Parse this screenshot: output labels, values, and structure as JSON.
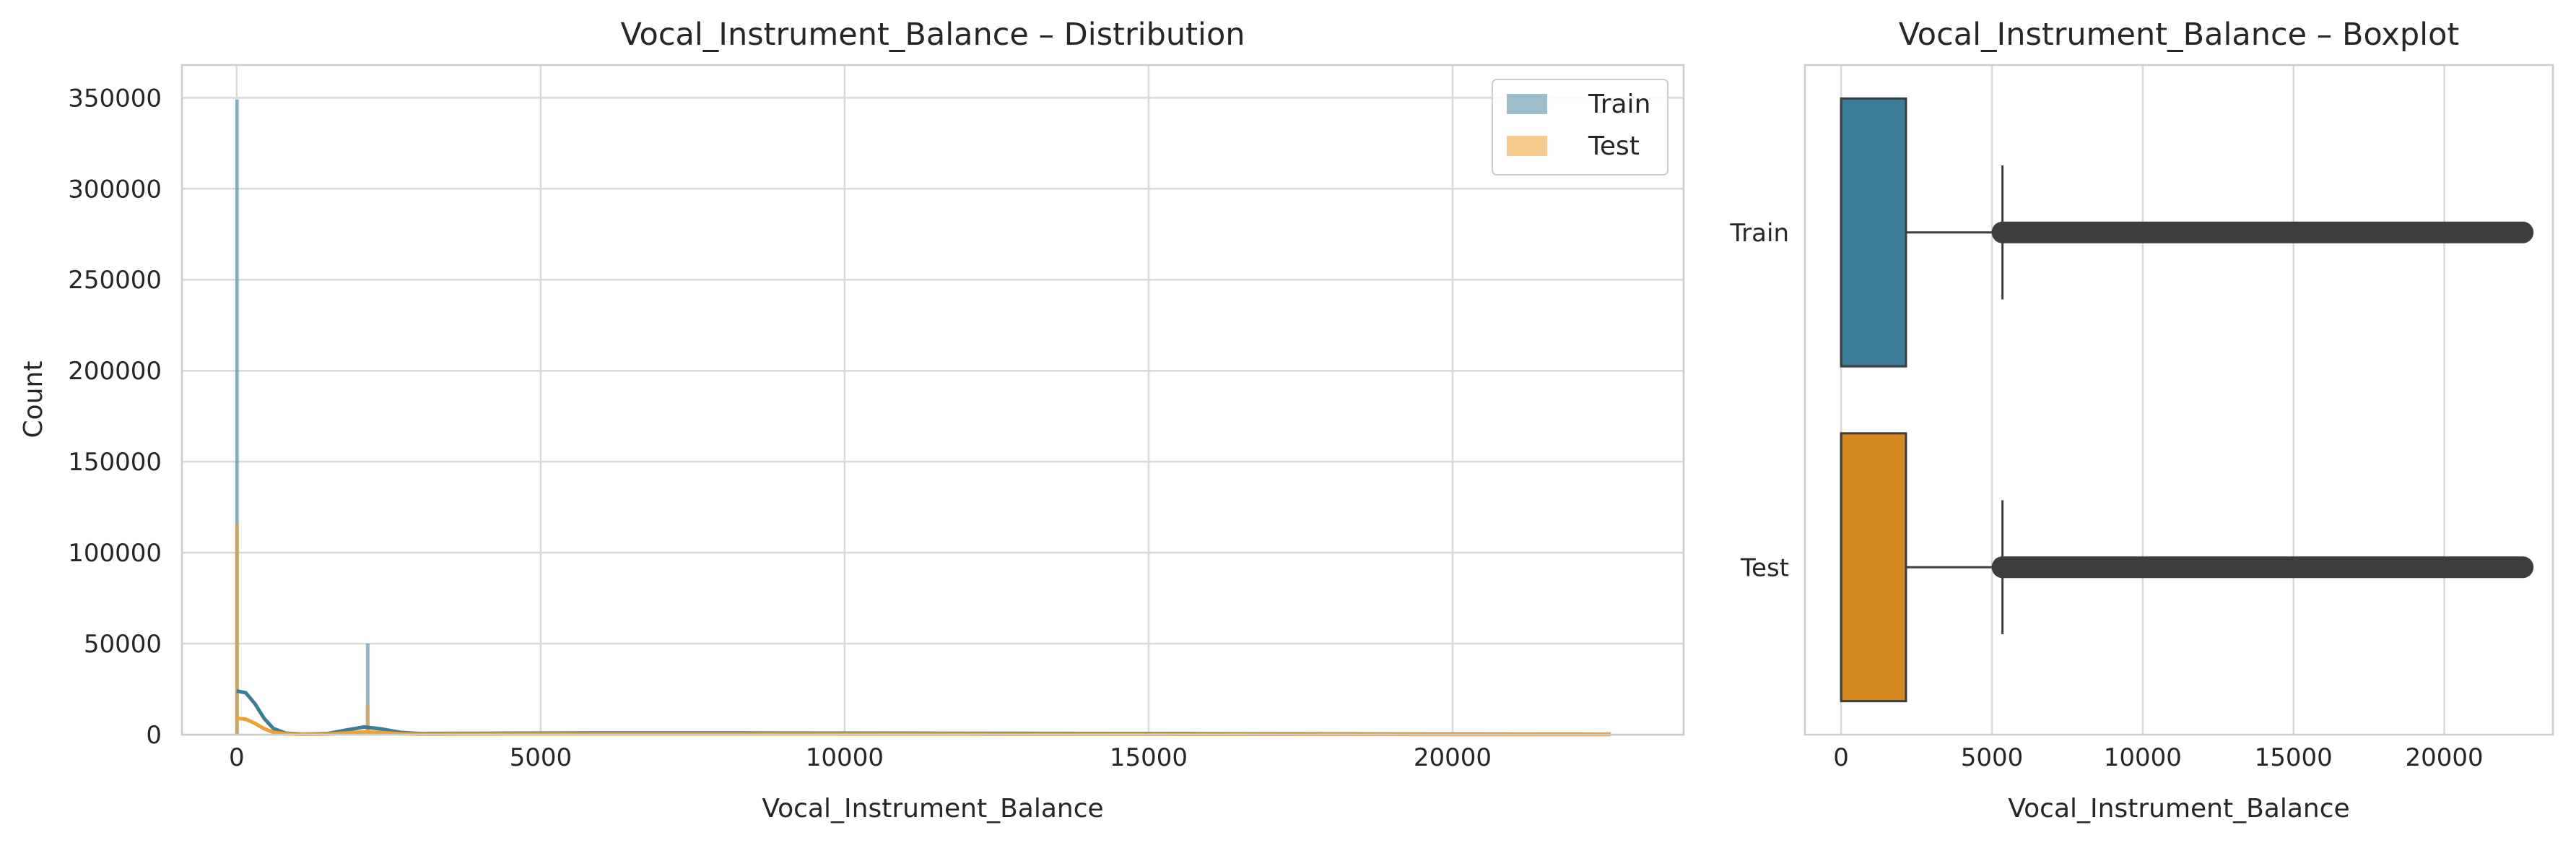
{
  "chart_data": [
    {
      "type": "histogram",
      "title": "Vocal_Instrument_Balance – Distribution",
      "xlabel": "Vocal_Instrument_Balance",
      "ylabel": "Count",
      "xlim": [
        -900,
        23800
      ],
      "ylim": [
        0,
        368000
      ],
      "xticks": [
        0,
        5000,
        10000,
        15000,
        20000
      ],
      "xtick_labels": [
        "0",
        "5000",
        "10000",
        "15000",
        "20000"
      ],
      "yticks": [
        0,
        50000,
        100000,
        150000,
        200000,
        250000,
        300000,
        350000
      ],
      "ytick_labels": [
        "0",
        "50000",
        "100000",
        "150000",
        "200000",
        "250000",
        "300000",
        "350000"
      ],
      "grid": true,
      "legend_position": "top-right",
      "series": [
        {
          "name": "Train",
          "color": "#3b7d99",
          "bars": [
            {
              "x": 0,
              "value": 349000
            },
            {
              "x": 2150,
              "value": 50000
            }
          ],
          "kde": [
            [
              0,
              24000
            ],
            [
              150,
              23000
            ],
            [
              300,
              17000
            ],
            [
              450,
              9000
            ],
            [
              600,
              3500
            ],
            [
              800,
              800
            ],
            [
              1100,
              300
            ],
            [
              1500,
              600
            ],
            [
              1800,
              2500
            ],
            [
              2100,
              4200
            ],
            [
              2400,
              3000
            ],
            [
              2700,
              1200
            ],
            [
              3000,
              600
            ],
            [
              4000,
              700
            ],
            [
              6000,
              900
            ],
            [
              8000,
              900
            ],
            [
              10000,
              800
            ],
            [
              12000,
              700
            ],
            [
              14000,
              600
            ],
            [
              16000,
              500
            ],
            [
              18000,
              400
            ],
            [
              20000,
              300
            ],
            [
              22000,
              250
            ],
            [
              22600,
              200
            ]
          ]
        },
        {
          "name": "Test",
          "color": "#f0a030",
          "bars": [
            {
              "x": 0,
              "value": 116000
            },
            {
              "x": 2150,
              "value": 16500
            }
          ],
          "kde": [
            [
              0,
              9000
            ],
            [
              150,
              8500
            ],
            [
              300,
              6200
            ],
            [
              450,
              3300
            ],
            [
              600,
              1300
            ],
            [
              800,
              400
            ],
            [
              1100,
              200
            ],
            [
              1500,
              300
            ],
            [
              1800,
              900
            ],
            [
              2100,
              1500
            ],
            [
              2400,
              1100
            ],
            [
              2700,
              450
            ],
            [
              3000,
              250
            ],
            [
              4000,
              300
            ],
            [
              6000,
              350
            ],
            [
              8000,
              350
            ],
            [
              10000,
              320
            ],
            [
              12000,
              280
            ],
            [
              14000,
              240
            ],
            [
              16000,
              200
            ],
            [
              18000,
              160
            ],
            [
              20000,
              120
            ],
            [
              22000,
              100
            ],
            [
              22600,
              80
            ]
          ]
        }
      ]
    },
    {
      "type": "boxplot",
      "title": "Vocal_Instrument_Balance – Boxplot",
      "xlabel": "Vocal_Instrument_Balance",
      "xlim": [
        -1200,
        23600
      ],
      "xticks": [
        0,
        5000,
        10000,
        15000,
        20000
      ],
      "xtick_labels": [
        "0",
        "5000",
        "10000",
        "15000",
        "20000"
      ],
      "grid": true,
      "boxes": [
        {
          "name": "Train",
          "color": "#3b7d99",
          "q1": 0,
          "median": 0,
          "q3": 2150,
          "whisker_low": 0,
          "whisker_high": 5350,
          "outlier_min": 5350,
          "outlier_max": 22600
        },
        {
          "name": "Test",
          "color": "#d4891f",
          "q1": 0,
          "median": 0,
          "q3": 2150,
          "whisker_low": 0,
          "whisker_high": 5350,
          "outlier_min": 5350,
          "outlier_max": 22600
        }
      ]
    }
  ]
}
